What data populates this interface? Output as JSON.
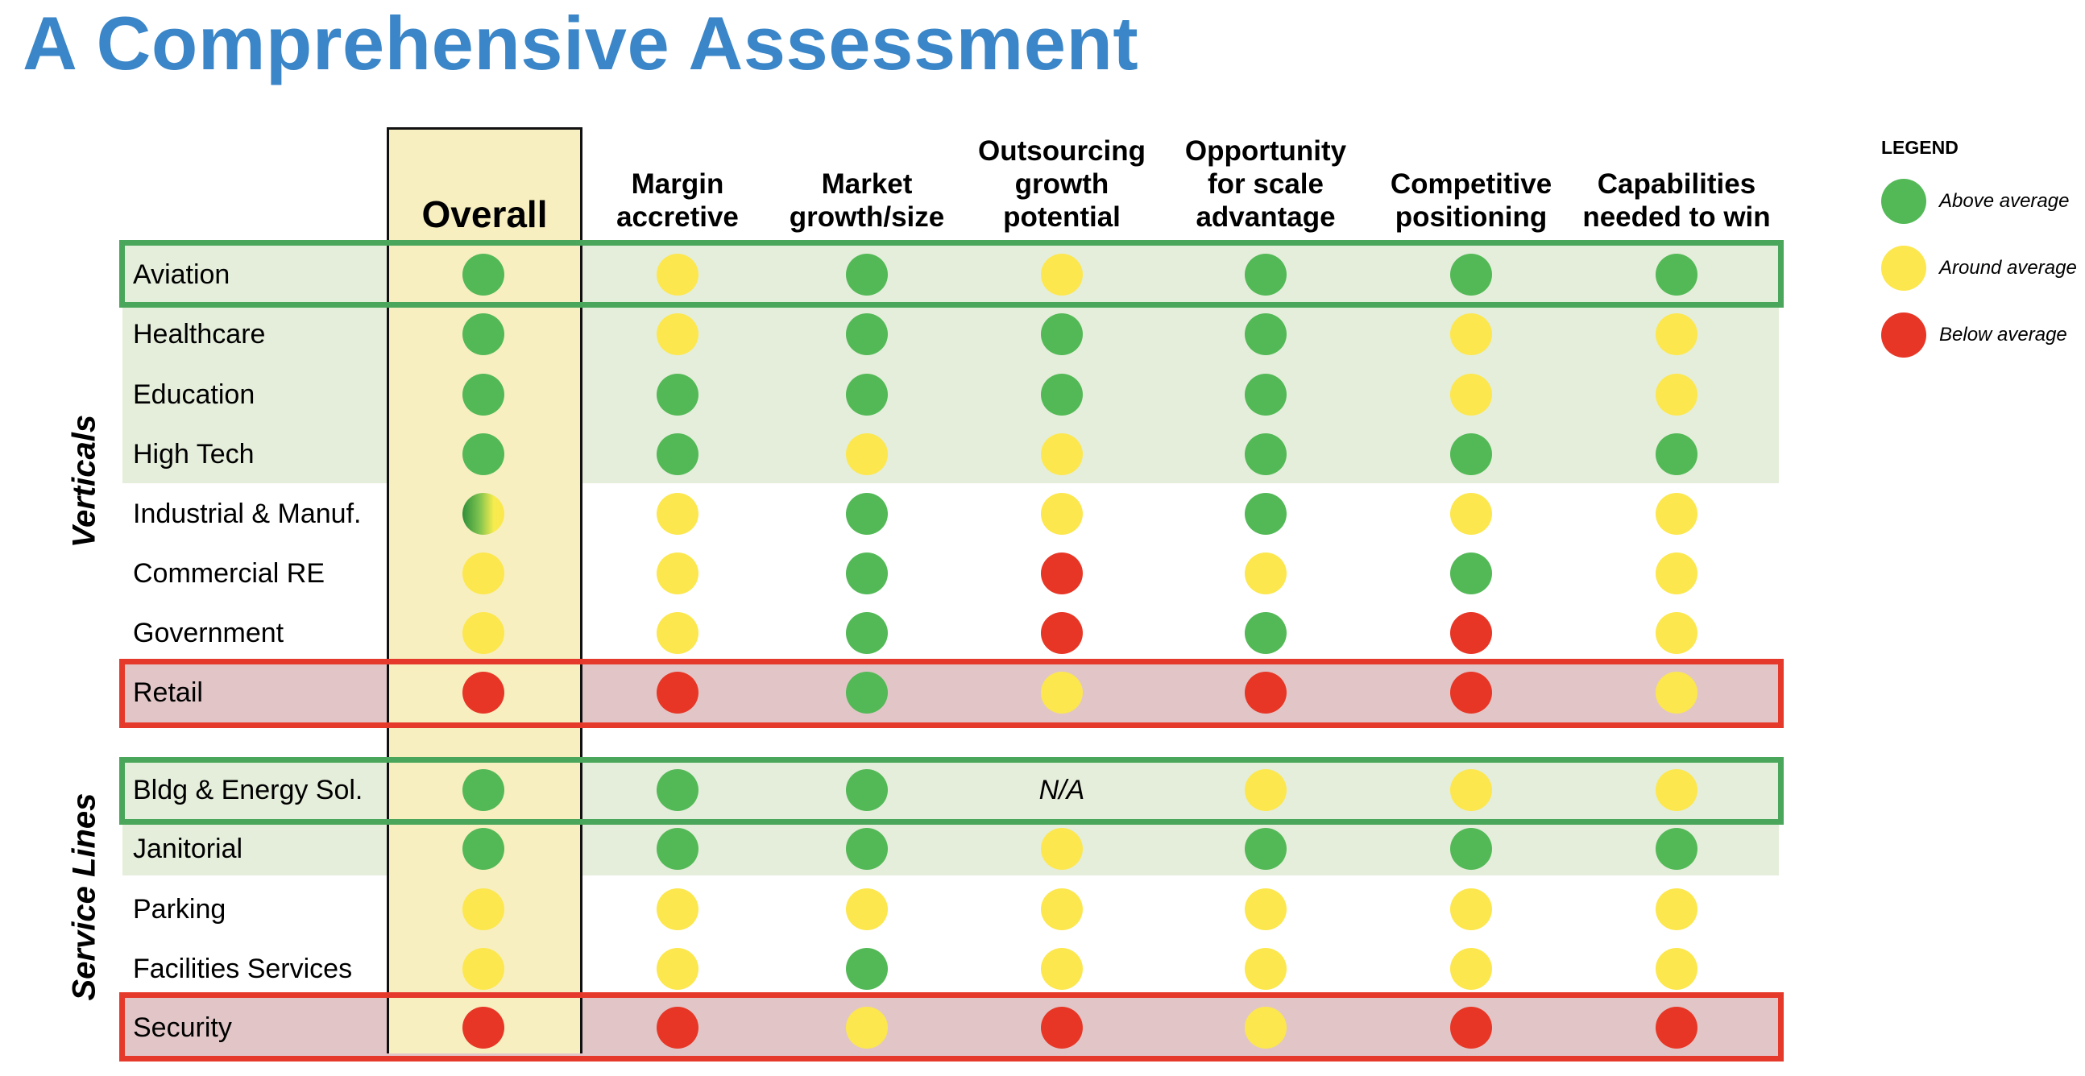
{
  "title": "A Comprehensive Assessment",
  "colors": {
    "green": "#53b957",
    "yellow": "#fce74e",
    "red": "#e73626",
    "title": "#3a86c8"
  },
  "columns": {
    "overall": "Overall",
    "c1": [
      "",
      "Margin",
      "accretive"
    ],
    "c2": [
      "",
      "Market",
      "growth/size"
    ],
    "c3": [
      "Outsourcing",
      "growth",
      "potential"
    ],
    "c4": [
      "Opportunity",
      "for scale",
      "advantage"
    ],
    "c5": [
      "",
      "Competitive",
      "positioning"
    ],
    "c6": [
      "",
      "Capabilities",
      "needed to win"
    ]
  },
  "groups": {
    "verticals": "Verticals",
    "service_lines": "Service Lines"
  },
  "rows": [
    {
      "label": "Aviation",
      "ratings": [
        "green",
        "yellow",
        "green",
        "yellow",
        "green",
        "green",
        "green"
      ]
    },
    {
      "label": "Healthcare",
      "ratings": [
        "green",
        "yellow",
        "green",
        "green",
        "green",
        "yellow",
        "yellow"
      ]
    },
    {
      "label": "Education",
      "ratings": [
        "green",
        "green",
        "green",
        "green",
        "green",
        "yellow",
        "yellow"
      ]
    },
    {
      "label": "High Tech",
      "ratings": [
        "green",
        "green",
        "yellow",
        "yellow",
        "green",
        "green",
        "green"
      ]
    },
    {
      "label": "Industrial & Manuf.",
      "ratings": [
        "green-yellow",
        "yellow",
        "green",
        "yellow",
        "green",
        "yellow",
        "yellow"
      ]
    },
    {
      "label": "Commercial RE",
      "ratings": [
        "yellow",
        "yellow",
        "green",
        "red",
        "yellow",
        "green",
        "yellow"
      ]
    },
    {
      "label": "Government",
      "ratings": [
        "yellow",
        "yellow",
        "green",
        "red",
        "green",
        "red",
        "yellow"
      ]
    },
    {
      "label": "Retail",
      "ratings": [
        "red",
        "red",
        "green",
        "yellow",
        "red",
        "red",
        "yellow"
      ]
    },
    {
      "label": "Bldg & Energy Sol.",
      "ratings": [
        "green",
        "green",
        "green",
        "N/A",
        "yellow",
        "yellow",
        "yellow"
      ]
    },
    {
      "label": "Janitorial",
      "ratings": [
        "green",
        "green",
        "green",
        "yellow",
        "green",
        "green",
        "green"
      ]
    },
    {
      "label": "Parking",
      "ratings": [
        "yellow",
        "yellow",
        "yellow",
        "yellow",
        "yellow",
        "yellow",
        "yellow"
      ]
    },
    {
      "label": "Facilities Services",
      "ratings": [
        "yellow",
        "yellow",
        "green",
        "yellow",
        "yellow",
        "yellow",
        "yellow"
      ]
    },
    {
      "label": "Security",
      "ratings": [
        "red",
        "red",
        "yellow",
        "red",
        "yellow",
        "red",
        "red"
      ]
    }
  ],
  "legend": {
    "title": "LEGEND",
    "items": [
      {
        "color": "green",
        "label": "Above average"
      },
      {
        "color": "yellow",
        "label": "Around average"
      },
      {
        "color": "red",
        "label": "Below average"
      }
    ]
  }
}
